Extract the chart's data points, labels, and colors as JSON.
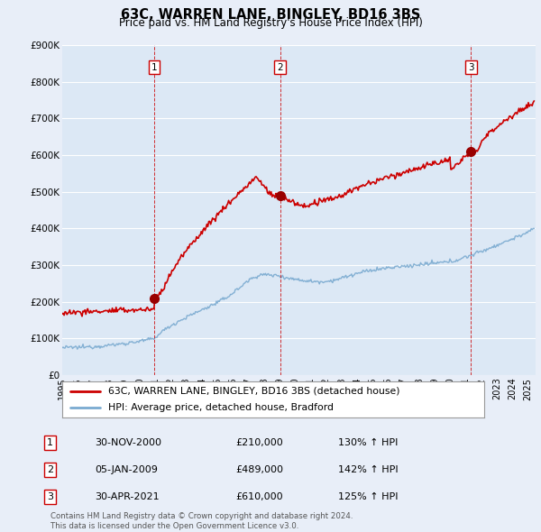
{
  "title": "63C, WARREN LANE, BINGLEY, BD16 3BS",
  "subtitle": "Price paid vs. HM Land Registry's House Price Index (HPI)",
  "ylim": [
    0,
    900000
  ],
  "yticks": [
    0,
    100000,
    200000,
    300000,
    400000,
    500000,
    600000,
    700000,
    800000,
    900000
  ],
  "ytick_labels": [
    "£0",
    "£100K",
    "£200K",
    "£300K",
    "£400K",
    "£500K",
    "£600K",
    "£700K",
    "£800K",
    "£900K"
  ],
  "background_color": "#e8eef8",
  "plot_bg_color": "#dce8f5",
  "grid_color": "#ffffff",
  "sale_color": "#cc0000",
  "hpi_color": "#7aaad0",
  "vline_color": "#cc0000",
  "xlim_start": 1995,
  "xlim_end": 2025.5,
  "purchases": [
    {
      "num": 1,
      "date_display": "30-NOV-2000",
      "price": 210000,
      "hpi_pct": "130%",
      "xval": 2000.917
    },
    {
      "num": 2,
      "date_display": "05-JAN-2009",
      "price": 489000,
      "hpi_pct": "142%",
      "xval": 2009.042
    },
    {
      "num": 3,
      "date_display": "30-APR-2021",
      "price": 610000,
      "hpi_pct": "125%",
      "xval": 2021.333
    }
  ],
  "legend_entry1": "63C, WARREN LANE, BINGLEY, BD16 3BS (detached house)",
  "legend_entry2": "HPI: Average price, detached house, Bradford",
  "footer1": "Contains HM Land Registry data © Crown copyright and database right 2024.",
  "footer2": "This data is licensed under the Open Government Licence v3.0.",
  "table_rows": [
    {
      "num": 1,
      "date": "30-NOV-2000",
      "price": "£210,000",
      "hpi": "130% ↑ HPI"
    },
    {
      "num": 2,
      "date": "05-JAN-2009",
      "price": "£489,000",
      "hpi": "142% ↑ HPI"
    },
    {
      "num": 3,
      "date": "30-APR-2021",
      "price": "£610,000",
      "hpi": "125% ↑ HPI"
    }
  ]
}
